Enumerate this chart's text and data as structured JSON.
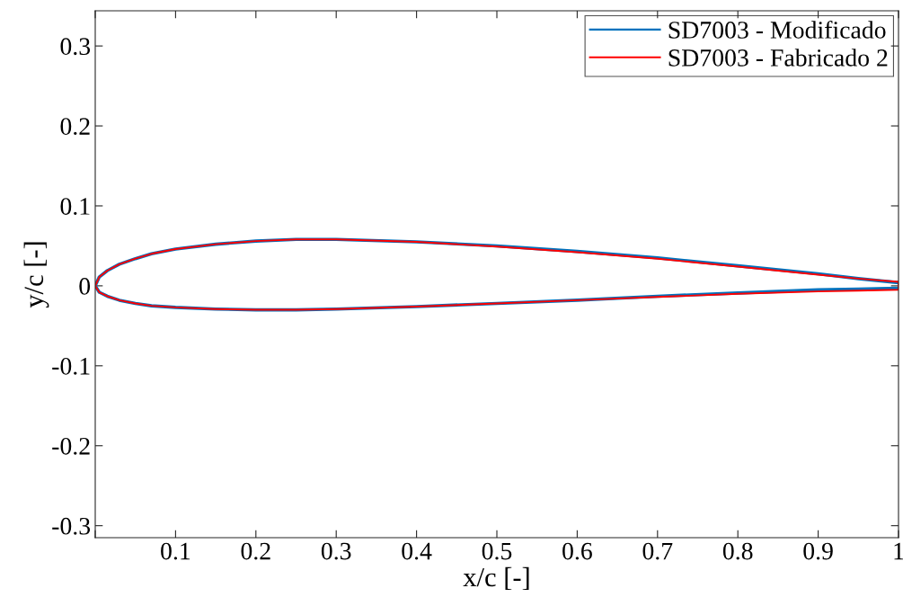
{
  "chart_data": {
    "type": "line",
    "xlabel": "x/c [-]",
    "ylabel": "y/c [-]",
    "xlim": [
      0,
      1
    ],
    "ylim": [
      -0.315,
      0.344
    ],
    "xticks": [
      {
        "value": 0,
        "label": null
      },
      0.1,
      0.2,
      0.3,
      0.4,
      0.5,
      0.6,
      0.7,
      0.8,
      0.9,
      1
    ],
    "yticks": [
      -0.3,
      -0.2,
      -0.1,
      0,
      0.1,
      0.2,
      0.3
    ],
    "grid": false,
    "legend": "top right",
    "marker": "none",
    "line_style": "solid",
    "series": [
      {
        "name": "SD7003 - Modificado",
        "color": "#0072bd",
        "x": [
          0,
          0.005,
          0.015,
          0.03,
          0.05,
          0.07,
          0.1,
          0.15,
          0.2,
          0.25,
          0.3,
          0.4,
          0.5,
          0.6,
          0.7,
          0.8,
          0.9,
          0.95,
          1
        ],
        "values": [
          0,
          0.011,
          0.019,
          0.027,
          0.034,
          0.04,
          0.046,
          0.052,
          0.056,
          0.058,
          0.058,
          0.055,
          0.05,
          0.043,
          0.035,
          0.025,
          0.015,
          0.009,
          0.004
        ]
      },
      {
        "color": "#0072bd",
        "x": [
          0,
          0.005,
          0.015,
          0.03,
          0.05,
          0.07,
          0.1,
          0.15,
          0.2,
          0.25,
          0.3,
          0.4,
          0.5,
          0.6,
          0.7,
          0.8,
          0.9,
          0.95,
          1
        ],
        "values": [
          0,
          -0.008,
          -0.013,
          -0.018,
          -0.022,
          -0.025,
          -0.027,
          -0.029,
          -0.03,
          -0.03,
          -0.029,
          -0.026,
          -0.022,
          -0.018,
          -0.013,
          -0.009,
          -0.005,
          -0.004,
          -0.003
        ]
      },
      {
        "name": "SD7003 - Fabricado 2",
        "color": "#ff0000",
        "x": [
          0,
          0.005,
          0.015,
          0.03,
          0.05,
          0.07,
          0.1,
          0.15,
          0.2,
          0.25,
          0.3,
          0.4,
          0.5,
          0.6,
          0.7,
          0.8,
          0.9,
          0.95,
          1
        ],
        "values": [
          0,
          0.011,
          0.019,
          0.027,
          0.034,
          0.04,
          0.046,
          0.052,
          0.056,
          0.058,
          0.058,
          0.055,
          0.049,
          0.042,
          0.034,
          0.024,
          0.014,
          0.009,
          0.005
        ]
      },
      {
        "color": "#ff0000",
        "x": [
          0,
          0.005,
          0.015,
          0.03,
          0.05,
          0.07,
          0.1,
          0.15,
          0.2,
          0.25,
          0.3,
          0.4,
          0.5,
          0.6,
          0.7,
          0.8,
          0.9,
          0.95,
          1,
          1
        ],
        "values": [
          0,
          -0.008,
          -0.013,
          -0.018,
          -0.022,
          -0.025,
          -0.027,
          -0.029,
          -0.03,
          -0.03,
          -0.029,
          -0.026,
          -0.022,
          -0.018,
          -0.014,
          -0.01,
          -0.007,
          -0.006,
          -0.005,
          0.005
        ]
      }
    ]
  }
}
